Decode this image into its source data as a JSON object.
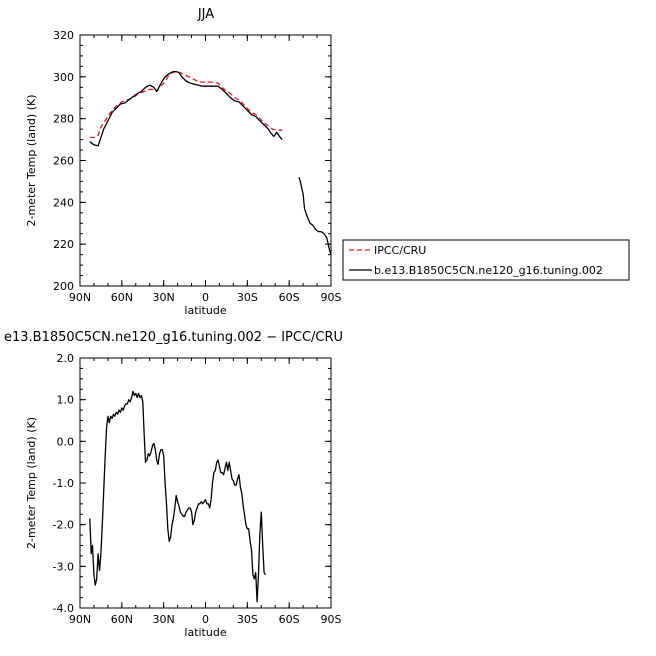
{
  "chart_data": [
    {
      "type": "line",
      "title": "JJA",
      "xlabel": "latitude",
      "ylabel": "2-meter Temp (land) (K)",
      "xlim": [
        90,
        -90
      ],
      "ylim": [
        200,
        320
      ],
      "x_ticks": [
        90,
        60,
        30,
        0,
        -30,
        -60,
        -90
      ],
      "x_tick_labels": [
        "90N",
        "60N",
        "30N",
        "0",
        "30S",
        "60S",
        "90S"
      ],
      "y_ticks": [
        200,
        220,
        240,
        260,
        280,
        300,
        320
      ],
      "y_tick_labels": [
        "200",
        "220",
        "240",
        "260",
        "280",
        "300",
        "320"
      ],
      "legend": "right",
      "series": [
        {
          "name": "IPCC/CRU",
          "color": "#e41a1c",
          "style": "dashed",
          "points": [
            [
              83,
              271
            ],
            [
              80,
              271
            ],
            [
              77,
              272
            ],
            [
              75,
              276
            ],
            [
              72,
              279
            ],
            [
              68,
              283
            ],
            [
              64,
              286
            ],
            [
              60,
              288
            ],
            [
              56,
              289
            ],
            [
              52,
              290
            ],
            [
              48,
              292
            ],
            [
              44,
              293
            ],
            [
              40,
              294
            ],
            [
              37,
              294
            ],
            [
              35,
              293
            ],
            [
              33,
              295
            ],
            [
              30,
              297
            ],
            [
              27,
              300
            ],
            [
              24,
              302
            ],
            [
              21,
              302.5
            ],
            [
              18,
              302
            ],
            [
              15,
              301
            ],
            [
              12,
              300
            ],
            [
              9,
              299
            ],
            [
              6,
              298
            ],
            [
              3,
              297.5
            ],
            [
              0,
              297.5
            ],
            [
              -3,
              297.5
            ],
            [
              -6,
              297.5
            ],
            [
              -9,
              297
            ],
            [
              -12,
              295
            ],
            [
              -15,
              293
            ],
            [
              -18,
              292
            ],
            [
              -21,
              290
            ],
            [
              -24,
              289
            ],
            [
              -27,
              287
            ],
            [
              -30,
              285
            ],
            [
              -33,
              283
            ],
            [
              -36,
              282
            ],
            [
              -39,
              280
            ],
            [
              -42,
              278
            ],
            [
              -45,
              276.5
            ],
            [
              -48,
              275
            ],
            [
              -51,
              274.5
            ],
            [
              -55,
              274.5
            ]
          ]
        },
        {
          "name": "b.e13.B1850C5CN.ne120_g16.tuning.002",
          "color": "#000000",
          "style": "solid",
          "points": [
            [
              83,
              269
            ],
            [
              80,
              267.5
            ],
            [
              77,
              267
            ],
            [
              75,
              271
            ],
            [
              73,
              275
            ],
            [
              70,
              279
            ],
            [
              67,
              283
            ],
            [
              64,
              285
            ],
            [
              61,
              287
            ],
            [
              58,
              287.5
            ],
            [
              55,
              289
            ],
            [
              52,
              290.5
            ],
            [
              49,
              292
            ],
            [
              46,
              293
            ],
            [
              43,
              295
            ],
            [
              40,
              296
            ],
            [
              37,
              295
            ],
            [
              35,
              293
            ],
            [
              33,
              295.5
            ],
            [
              31,
              298
            ],
            [
              29,
              300
            ],
            [
              27,
              301
            ],
            [
              25,
              302
            ],
            [
              23,
              302.5
            ],
            [
              21,
              302.5
            ],
            [
              19,
              302
            ],
            [
              17,
              300
            ],
            [
              14,
              298
            ],
            [
              11,
              297
            ],
            [
              8,
              296.5
            ],
            [
              5,
              296
            ],
            [
              2,
              295.5
            ],
            [
              0,
              295.5
            ],
            [
              -3,
              295.5
            ],
            [
              -6,
              295.5
            ],
            [
              -9,
              295.5
            ],
            [
              -12,
              294
            ],
            [
              -15,
              292
            ],
            [
              -18,
              290
            ],
            [
              -21,
              288.5
            ],
            [
              -24,
              288
            ],
            [
              -27,
              286
            ],
            [
              -30,
              284
            ],
            [
              -33,
              282
            ],
            [
              -36,
              281
            ],
            [
              -39,
              279
            ],
            [
              -42,
              277
            ],
            [
              -45,
              275
            ],
            [
              -47,
              273
            ],
            [
              -49,
              271.5
            ],
            [
              -51,
              273.5
            ],
            [
              -53,
              271.5
            ],
            [
              -55,
              270
            ]
          ],
          "points2": [
            [
              -67,
              252
            ],
            [
              -68,
              250
            ],
            [
              -70,
              244
            ],
            [
              -71,
              237
            ],
            [
              -73,
              233
            ],
            [
              -75,
              230
            ],
            [
              -77,
              229
            ],
            [
              -79,
              227
            ],
            [
              -81,
              226
            ],
            [
              -83,
              226
            ],
            [
              -85,
              225
            ],
            [
              -87,
              223
            ],
            [
              -88,
              220
            ],
            [
              -89,
              217
            ],
            [
              -90,
              215
            ]
          ]
        }
      ]
    },
    {
      "type": "line",
      "title": "e13.B1850C5CN.ne120_g16.tuning.002 − IPCC/CRU",
      "xlabel": "latitude",
      "ylabel": "2-meter Temp (land) (K)",
      "xlim": [
        90,
        -90
      ],
      "ylim": [
        -4.0,
        2.0
      ],
      "x_ticks": [
        90,
        60,
        30,
        0,
        -30,
        -60,
        -90
      ],
      "x_tick_labels": [
        "90N",
        "60N",
        "30N",
        "0",
        "30S",
        "60S",
        "90S"
      ],
      "y_ticks": [
        -4.0,
        -3.0,
        -2.0,
        -1.0,
        0.0,
        1.0,
        2.0
      ],
      "y_tick_labels": [
        "-4.0",
        "-3.0",
        "-2.0",
        "-1.0",
        "0.0",
        "1.0",
        "2.0"
      ],
      "series": [
        {
          "color": "#000000",
          "style": "solid",
          "points": [
            [
              83,
              -1.85
            ],
            [
              82,
              -2.7
            ],
            [
              81,
              -2.5
            ],
            [
              80,
              -3.2
            ],
            [
              79,
              -3.45
            ],
            [
              78,
              -3.3
            ],
            [
              77,
              -2.7
            ],
            [
              76,
              -3.1
            ],
            [
              75,
              -2.7
            ],
            [
              74,
              -2.0
            ],
            [
              73,
              -1.2
            ],
            [
              72,
              -0.4
            ],
            [
              71,
              0.3
            ],
            [
              70,
              0.6
            ],
            [
              69,
              0.45
            ],
            [
              68,
              0.6
            ],
            [
              67,
              0.55
            ],
            [
              66,
              0.65
            ],
            [
              65,
              0.6
            ],
            [
              64,
              0.7
            ],
            [
              63,
              0.65
            ],
            [
              62,
              0.75
            ],
            [
              61,
              0.7
            ],
            [
              60,
              0.8
            ],
            [
              59,
              0.75
            ],
            [
              58,
              0.85
            ],
            [
              57,
              0.9
            ],
            [
              56,
              0.9
            ],
            [
              55,
              1.0
            ],
            [
              54,
              0.95
            ],
            [
              53,
              1.05
            ],
            [
              52,
              1.2
            ],
            [
              51,
              1.1
            ],
            [
              50,
              1.15
            ],
            [
              49,
              1.05
            ],
            [
              48,
              1.15
            ],
            [
              47,
              1.05
            ],
            [
              46,
              1.1
            ],
            [
              45,
              0.95
            ],
            [
              44,
              0.2
            ],
            [
              43,
              -0.5
            ],
            [
              42,
              -0.45
            ],
            [
              41,
              -0.3
            ],
            [
              40,
              -0.35
            ],
            [
              39,
              -0.25
            ],
            [
              38,
              -0.1
            ],
            [
              37,
              -0.05
            ],
            [
              36,
              -0.2
            ],
            [
              35,
              -0.45
            ],
            [
              34,
              -0.55
            ],
            [
              33,
              -0.3
            ],
            [
              32,
              -0.2
            ],
            [
              31,
              -0.2
            ],
            [
              30,
              -0.35
            ],
            [
              29,
              -1.0
            ],
            [
              28,
              -1.5
            ],
            [
              27,
              -2.1
            ],
            [
              26,
              -2.4
            ],
            [
              25,
              -2.3
            ],
            [
              24,
              -2.0
            ],
            [
              23,
              -1.85
            ],
            [
              22,
              -1.6
            ],
            [
              21,
              -1.3
            ],
            [
              20,
              -1.45
            ],
            [
              19,
              -1.55
            ],
            [
              18,
              -1.7
            ],
            [
              17,
              -1.75
            ],
            [
              16,
              -1.8
            ],
            [
              15,
              -1.8
            ],
            [
              14,
              -1.7
            ],
            [
              13,
              -1.65
            ],
            [
              12,
              -1.6
            ],
            [
              11,
              -1.6
            ],
            [
              10,
              -1.7
            ],
            [
              9,
              -2.0
            ],
            [
              8,
              -1.9
            ],
            [
              7,
              -1.7
            ],
            [
              6,
              -1.6
            ],
            [
              5,
              -1.5
            ],
            [
              4,
              -1.5
            ],
            [
              3,
              -1.45
            ],
            [
              2,
              -1.5
            ],
            [
              1,
              -1.45
            ],
            [
              0,
              -1.4
            ],
            [
              -1,
              -1.5
            ],
            [
              -2,
              -1.5
            ],
            [
              -3,
              -1.6
            ],
            [
              -4,
              -1.4
            ],
            [
              -5,
              -1.0
            ],
            [
              -6,
              -0.75
            ],
            [
              -7,
              -0.7
            ],
            [
              -8,
              -0.5
            ],
            [
              -9,
              -0.45
            ],
            [
              -10,
              -0.6
            ],
            [
              -11,
              -0.75
            ],
            [
              -12,
              -0.75
            ],
            [
              -13,
              -0.8
            ],
            [
              -14,
              -0.65
            ],
            [
              -15,
              -0.5
            ],
            [
              -16,
              -0.7
            ],
            [
              -17,
              -0.5
            ],
            [
              -18,
              -0.7
            ],
            [
              -19,
              -0.9
            ],
            [
              -20,
              -0.95
            ],
            [
              -21,
              -1.05
            ],
            [
              -22,
              -1.05
            ],
            [
              -23,
              -0.9
            ],
            [
              -24,
              -0.8
            ],
            [
              -25,
              -1.1
            ],
            [
              -26,
              -1.25
            ],
            [
              -27,
              -1.55
            ],
            [
              -28,
              -1.75
            ],
            [
              -29,
              -2.0
            ],
            [
              -30,
              -2.1
            ],
            [
              -31,
              -2.1
            ],
            [
              -32,
              -2.4
            ],
            [
              -33,
              -2.6
            ],
            [
              -34,
              -3.2
            ],
            [
              -35,
              -3.3
            ],
            [
              -36,
              -3.15
            ],
            [
              -37,
              -3.85
            ],
            [
              -38,
              -3.2
            ],
            [
              -39,
              -2.2
            ],
            [
              -40,
              -1.7
            ],
            [
              -41,
              -2.5
            ],
            [
              -42,
              -3.15
            ],
            [
              -43,
              -3.2
            ]
          ]
        }
      ]
    }
  ]
}
